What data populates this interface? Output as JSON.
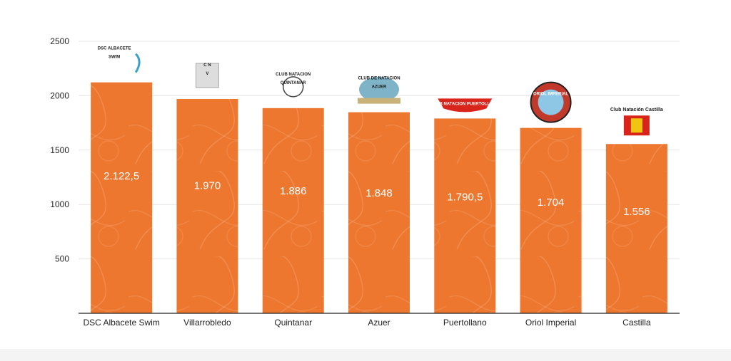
{
  "chart_data": {
    "type": "bar",
    "title": "",
    "xlabel": "",
    "ylabel": "",
    "ylim": [
      0,
      2500
    ],
    "yticks": [
      500,
      1000,
      1500,
      2000,
      2500
    ],
    "grid": true,
    "categories": [
      "DSC Albacete Swim",
      "Villarrobledo",
      "Quintanar",
      "Azuer",
      "Puertollano",
      "Oriol Imperial",
      "Castilla"
    ],
    "values": [
      2122.5,
      1970,
      1886,
      1848,
      1790.5,
      1704,
      1556
    ],
    "data_labels": [
      "2.122,5",
      "1.970",
      "1.886",
      "1.848",
      "1.790,5",
      "1.704",
      "1.556"
    ],
    "logos": [
      {
        "lines": [
          "DSC ALBACETE",
          "SWIM"
        ]
      },
      {
        "lines": [
          "C N",
          "V"
        ]
      },
      {
        "lines": [
          "CLUB NATACION",
          "QUINTANAR"
        ]
      },
      {
        "lines": [
          "CLUB DE NATACION",
          "AZUER"
        ]
      },
      {
        "lines": [
          "CLUB NATACION PUERTOLLANO"
        ]
      },
      {
        "lines": [
          "ORIOL IMPERIAL"
        ]
      },
      {
        "lines": [
          "Club Natación Castilla"
        ]
      }
    ],
    "colors": {
      "bar": "#ee772f",
      "grid": "#e6e6e6",
      "axis": "#222222",
      "label": "#ffffff"
    }
  }
}
